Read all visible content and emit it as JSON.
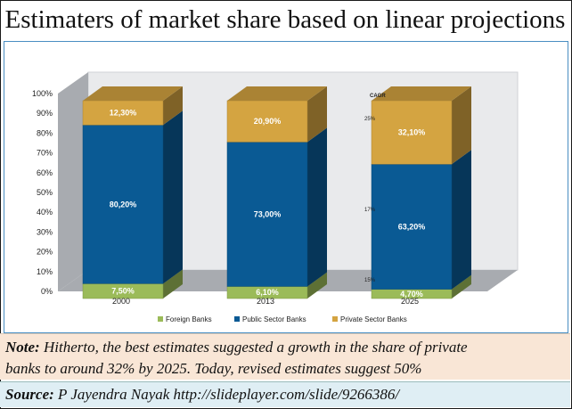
{
  "title": "Estimaters of market share based on linear projections",
  "note": {
    "label": "Note:",
    "line1": "Hitherto, the best estimates suggested a growth in the share of private",
    "line2": "banks to around 32% by 2025.  Today, revised estimates suggest 50%"
  },
  "source": {
    "label": "Source:",
    "text": "P Jayendra Nayak http://slideplayer.com/slide/9266386/"
  },
  "colors": {
    "foreign": "#9bbb59",
    "public": "#0a5a94",
    "private": "#d4a441"
  },
  "chart_data": {
    "type": "bar",
    "stacked": true,
    "categories": [
      "2000",
      "2013",
      "2025"
    ],
    "series": [
      {
        "name": "Foreign Banks",
        "values": [
          7.5,
          6.1,
          4.7
        ],
        "labels": [
          "7,50%",
          "6,10%",
          "4,70%"
        ]
      },
      {
        "name": "Public Sector Banks",
        "values": [
          80.2,
          73.0,
          63.2
        ],
        "labels": [
          "80,20%",
          "73,00%",
          "63,20%"
        ]
      },
      {
        "name": "Private Sector Banks",
        "values": [
          12.3,
          20.9,
          32.1
        ],
        "labels": [
          "12,30%",
          "20,90%",
          "32,10%"
        ]
      }
    ],
    "y_ticks": [
      "0%",
      "10%",
      "20%",
      "30%",
      "40%",
      "50%",
      "60%",
      "70%",
      "80%",
      "90%",
      "100%"
    ],
    "ylim": [
      0,
      100
    ],
    "cagr": {
      "title": "CAGR",
      "private": "25%",
      "public": "17%",
      "foreign": "15%"
    },
    "legend_position": "bottom",
    "grid": false
  }
}
